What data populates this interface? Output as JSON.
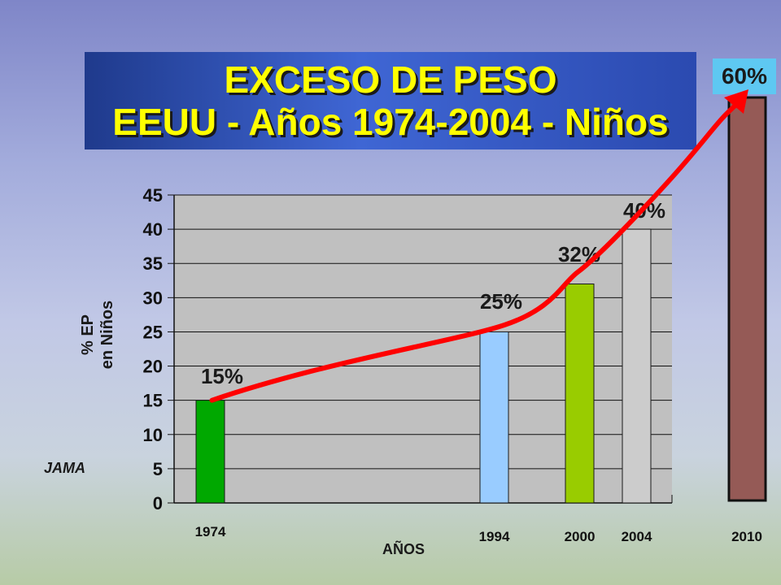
{
  "title": {
    "line1": "EXCESO DE PESO",
    "line2": "EEUU - Años 1974-2004 - Niños"
  },
  "badge": "60%",
  "note": "JAMA",
  "colors": {
    "title_text": "#ffff00",
    "title_bg": "#3f66d4",
    "badge_bg": "#5ec8f2",
    "trend_arrow": "#ff0000"
  },
  "chart_data": {
    "type": "bar",
    "title": "EXCESO DE PESO EEUU - Años 1974-2004 - Niños",
    "xlabel": "AÑOS",
    "ylabel_lines": [
      "% EP",
      "en Niños"
    ],
    "ylim": [
      0,
      45
    ],
    "yticks": [
      0,
      5,
      10,
      15,
      20,
      25,
      30,
      35,
      40,
      45
    ],
    "grid": true,
    "categories": [
      "1974",
      "1994",
      "2000",
      "2004"
    ],
    "values": [
      15,
      25,
      32,
      40
    ],
    "labels": [
      "15%",
      "25%",
      "32%",
      "40%"
    ],
    "bar_colors": [
      "#00a800",
      "#99ccff",
      "#99cc00",
      "#cccccc"
    ],
    "projection": {
      "category": "2010",
      "value": 60,
      "label": "60%",
      "color": "#955a56"
    },
    "trend": "curved red arrow through bar tops toward 2010 projection"
  }
}
